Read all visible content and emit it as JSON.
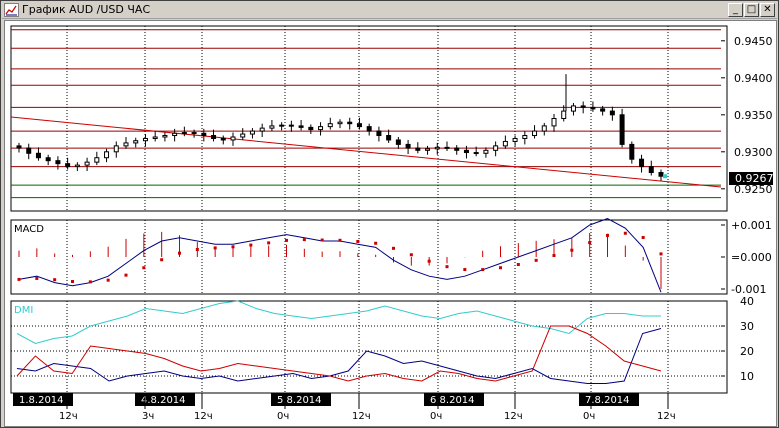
{
  "window": {
    "title": "График AUD /USD ЧАС",
    "minimize_label": "_",
    "maximize_label": "□",
    "close_label": "✕"
  },
  "colors": {
    "background": "#ffffff",
    "grid": "#000000",
    "resistance": "#990000",
    "support": "#006600",
    "candle": "#000000",
    "trendline": "#cc0000",
    "macd_line": "#000080",
    "macd_signal": "#cc0000",
    "dmi_adx": "#33cccc",
    "dmi_plus": "#000080",
    "dmi_minus": "#cc0000",
    "date_badge_bg": "#000000",
    "date_badge_text": "#ffffff",
    "current_price_bg": "#000000"
  },
  "price_panel": {
    "ticks": [
      "0.9450",
      "0.9400",
      "0.9350",
      "0.9300",
      "0.9250"
    ],
    "current_price": "0.9267"
  },
  "macd_panel": {
    "label": "MACD",
    "ticks": [
      "+0.001",
      "=0.000",
      "-0.001"
    ]
  },
  "dmi_panel": {
    "label": "DMI",
    "ticks": [
      "40",
      "30",
      "20",
      "10"
    ]
  },
  "date_badges": [
    "1.8.2014",
    "4.8.2014",
    "5.8.2014",
    "6.8.2014",
    "7.8.2014"
  ],
  "time_ticks": [
    "12ч",
    "3ч",
    "12ч",
    "0ч",
    "12ч",
    "0ч",
    "12ч",
    "0ч",
    "12ч"
  ],
  "chart_data": {
    "type": "line",
    "title": "График AUD /USD ЧАС",
    "series": [
      {
        "name": "AUD/USD",
        "values": [
          0.9305,
          0.9298,
          0.9292,
          0.9288,
          0.9284,
          0.928,
          0.9282,
          0.9286,
          0.9292,
          0.93,
          0.9308,
          0.9312,
          0.9315,
          0.9318,
          0.932,
          0.9322,
          0.9325,
          0.9326,
          0.9325,
          0.9322,
          0.9318,
          0.9316,
          0.932,
          0.9324,
          0.9328,
          0.9332,
          0.9335,
          0.9336,
          0.9335,
          0.9333,
          0.933,
          0.9334,
          0.9338,
          0.934,
          0.9338,
          0.9334,
          0.9328,
          0.9322,
          0.9316,
          0.931,
          0.9305,
          0.9302,
          0.9304,
          0.9306,
          0.9305,
          0.9302,
          0.9299,
          0.9298,
          0.9302,
          0.9308,
          0.9314,
          0.9318,
          0.9322,
          0.9328,
          0.9335,
          0.9345,
          0.9355,
          0.9362,
          0.936,
          0.9358,
          0.9355,
          0.935,
          0.931,
          0.929,
          0.928,
          0.9272,
          0.9267
        ]
      }
    ],
    "ylim": [
      0.922,
      0.947
    ],
    "resistance_levels": [
      0.9465,
      0.944,
      0.9412,
      0.939,
      0.936,
      0.9328,
      0.9305,
      0.928
    ],
    "support_levels": [
      0.9255,
      0.9238
    ],
    "current": 0.9267
  }
}
